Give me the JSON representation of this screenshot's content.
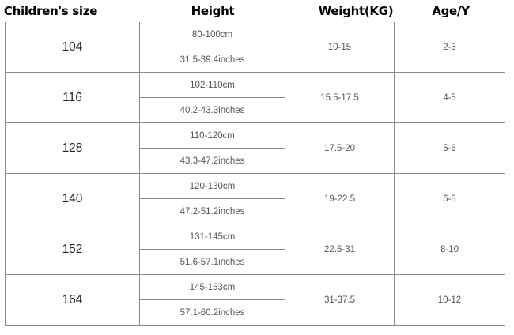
{
  "headers": {
    "size": "Children's size",
    "height": "Height",
    "weight": "Weight(KG)",
    "age": "Age/Y"
  },
  "rows": [
    {
      "size": "104",
      "cm": "80-100cm",
      "inches": "31.5-39.4inches",
      "weight": "10-15",
      "age": "2-3"
    },
    {
      "size": "116",
      "cm": "102-110cm",
      "inches": "40.2-43.3inches",
      "weight": "15.5-17.5",
      "age": "4-5"
    },
    {
      "size": "128",
      "cm": "110-120cm",
      "inches": "43.3-47.2inches",
      "weight": "17.5-20",
      "age": "5-6"
    },
    {
      "size": "140",
      "cm": "120-130cm",
      "inches": "47.2-51.2inches",
      "weight": "19-22.5",
      "age": "6-8"
    },
    {
      "size": "152",
      "cm": "131-145cm",
      "inches": "51.6-57.1inches",
      "weight": "22.5-31",
      "age": "8-10"
    },
    {
      "size": "164",
      "cm": "145-153cm",
      "inches": "57.1-60.2inches",
      "weight": "31-37.5",
      "age": "10-12"
    }
  ]
}
